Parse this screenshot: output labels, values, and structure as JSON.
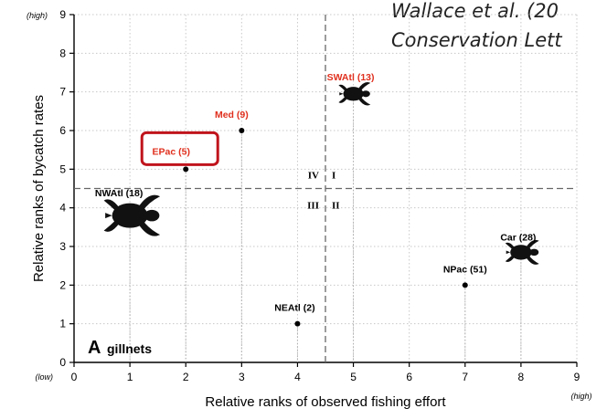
{
  "citation": {
    "line1": "Wallace et al. (20",
    "line2": "Conservation Lett"
  },
  "chart_data": {
    "type": "scatter",
    "title": "",
    "panel_letter": "A",
    "panel_label": "gillnets",
    "xlabel": "Relative ranks of observed fishing effort",
    "ylabel": "Relative ranks of bycatch rates",
    "xlim": [
      0,
      9
    ],
    "ylim": [
      0,
      9
    ],
    "x_ticks": [
      "0",
      "1",
      "2",
      "3",
      "4",
      "5",
      "6",
      "7",
      "8",
      "9"
    ],
    "y_ticks": [
      "0",
      "1",
      "2",
      "3",
      "4",
      "5",
      "6",
      "7",
      "8",
      "9"
    ],
    "x_low_label": "(low)",
    "x_high_label": "(high)",
    "y_high_label": "(high)",
    "grid": true,
    "divider_x": 4.5,
    "divider_y": 4.5,
    "quadrant_labels": [
      "IV",
      "I",
      "III",
      "II"
    ],
    "highlight_color": "#c0141c",
    "red_label_color": "#e0301e",
    "points": [
      {
        "label": "NWAtl (18)",
        "x": 1,
        "y": 3.8,
        "marker": "turtle",
        "turtle_size": 1.5,
        "color": "#000000"
      },
      {
        "label": "EPac (5)",
        "x": 2,
        "y": 5,
        "marker": "dot",
        "color": "#e0301e",
        "highlighted": true
      },
      {
        "label": "Med (9)",
        "x": 3,
        "y": 6,
        "marker": "dot",
        "color": "#e0301e"
      },
      {
        "label": "NEAtl (2)",
        "x": 4,
        "y": 1,
        "marker": "dot",
        "color": "#000000"
      },
      {
        "label": "SWAtl (13)",
        "x": 5,
        "y": 6.95,
        "marker": "turtle",
        "turtle_size": 0.85,
        "color": "#e0301e"
      },
      {
        "label": "NPac (51)",
        "x": 7,
        "y": 2,
        "marker": "dot",
        "color": "#000000"
      },
      {
        "label": "Car (28)",
        "x": 8,
        "y": 2.85,
        "marker": "turtle",
        "turtle_size": 0.9,
        "color": "#000000"
      }
    ]
  }
}
